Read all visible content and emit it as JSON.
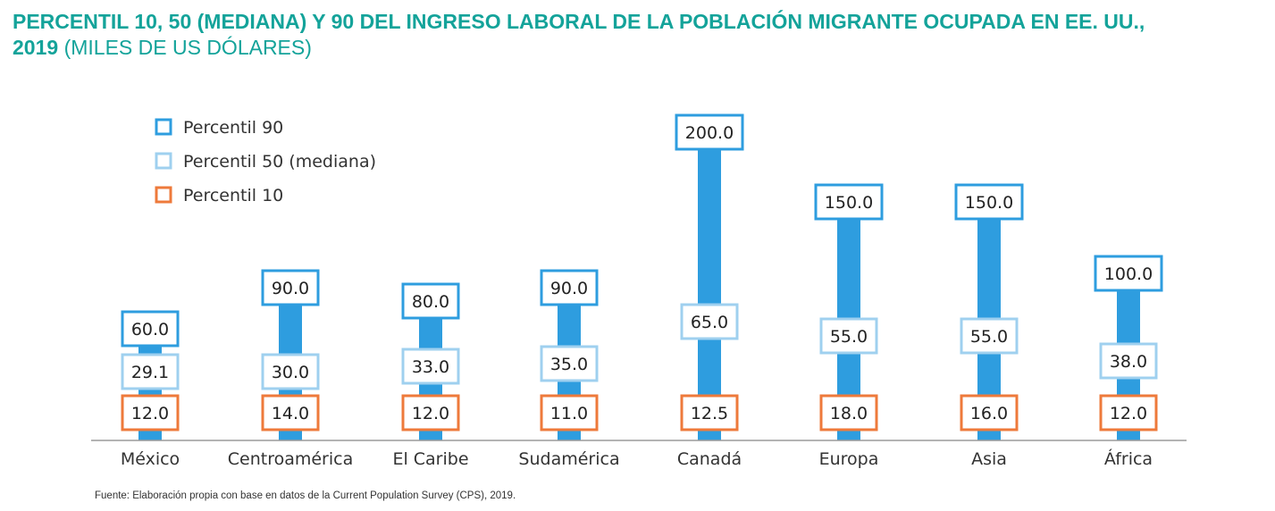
{
  "title": {
    "main": "PERCENTIL 10, 50 (MEDIANA) Y 90 DEL INGRESO LABORAL DE LA POBLACIÓN MIGRANTE OCUPADA EN EE. UU.,",
    "year": "2019",
    "unit": "(MILES DE US DÓLARES)"
  },
  "source": "Fuente: Elaboración propia con base en datos de la Current Population Survey (CPS), 2019.",
  "colors": {
    "title": "#14a39a",
    "bar": "#2e9ddf",
    "p90_border": "#2e9ddf",
    "p50_border": "#9fd0ef",
    "p10_border": "#ee7a3b"
  },
  "chart_data": {
    "type": "bar",
    "categories": [
      "México",
      "Centroamérica",
      "El Caribe",
      "Sudamérica",
      "Canadá",
      "Europa",
      "Asia",
      "África"
    ],
    "series": [
      {
        "name": "Percentil 90",
        "values": [
          60.0,
          90.0,
          80.0,
          90.0,
          200.0,
          150.0,
          150.0,
          100.0
        ]
      },
      {
        "name": "Percentil 50 (mediana)",
        "values": [
          29.1,
          30.0,
          33.0,
          35.0,
          65.0,
          55.0,
          55.0,
          38.0
        ]
      },
      {
        "name": "Percentil 10",
        "values": [
          12.0,
          14.0,
          12.0,
          11.0,
          12.5,
          18.0,
          16.0,
          12.0
        ]
      }
    ],
    "labels": {
      "p90": [
        "60.0",
        "90.0",
        "80.0",
        "90.0",
        "200.0",
        "150.0",
        "150.0",
        "100.0"
      ],
      "p50": [
        "29.1",
        "30.0",
        "33.0",
        "35.0",
        "65.0",
        "55.0",
        "55.0",
        "38.0"
      ],
      "p10": [
        "12.0",
        "14.0",
        "12.0",
        "11.0",
        "12.5",
        "18.0",
        "16.0",
        "12.0"
      ]
    },
    "legend_position": "top-left",
    "grid": false,
    "xlabel": "",
    "ylabel": ""
  }
}
